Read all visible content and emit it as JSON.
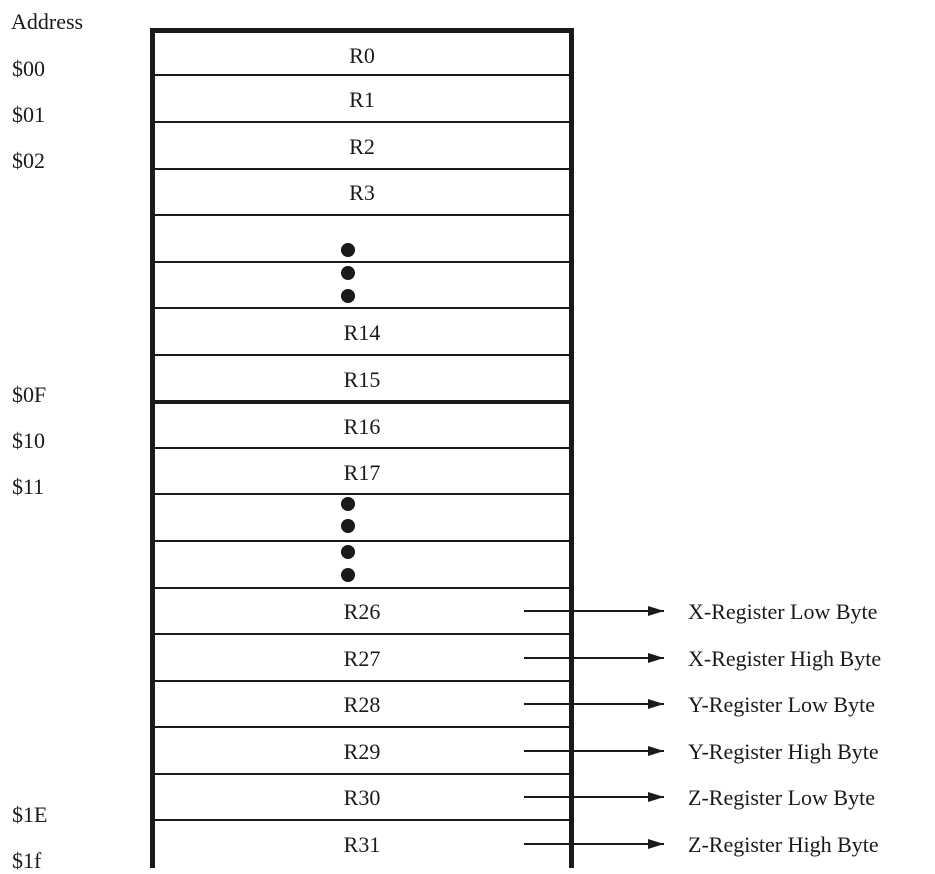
{
  "address_header": "Address",
  "addresses": [
    "$00",
    "$01",
    "$02",
    "$0F",
    "$10",
    "$11",
    "$1E",
    "$1f"
  ],
  "registers_low": [
    "R0",
    "R1",
    "R2",
    "R3"
  ],
  "registers_mid_low": [
    "R14",
    "R15"
  ],
  "registers_mid_high": [
    "R16",
    "R17"
  ],
  "registers_pointer": [
    "R26",
    "R27",
    "R28",
    "R29",
    "R30",
    "R31"
  ],
  "pointer_labels": [
    "X-Register Low Byte",
    "X-Register High Byte",
    "Y-Register Low Byte",
    "Y-Register High Byte",
    "Z-Register Low Byte",
    "Z-Register High Byte"
  ]
}
